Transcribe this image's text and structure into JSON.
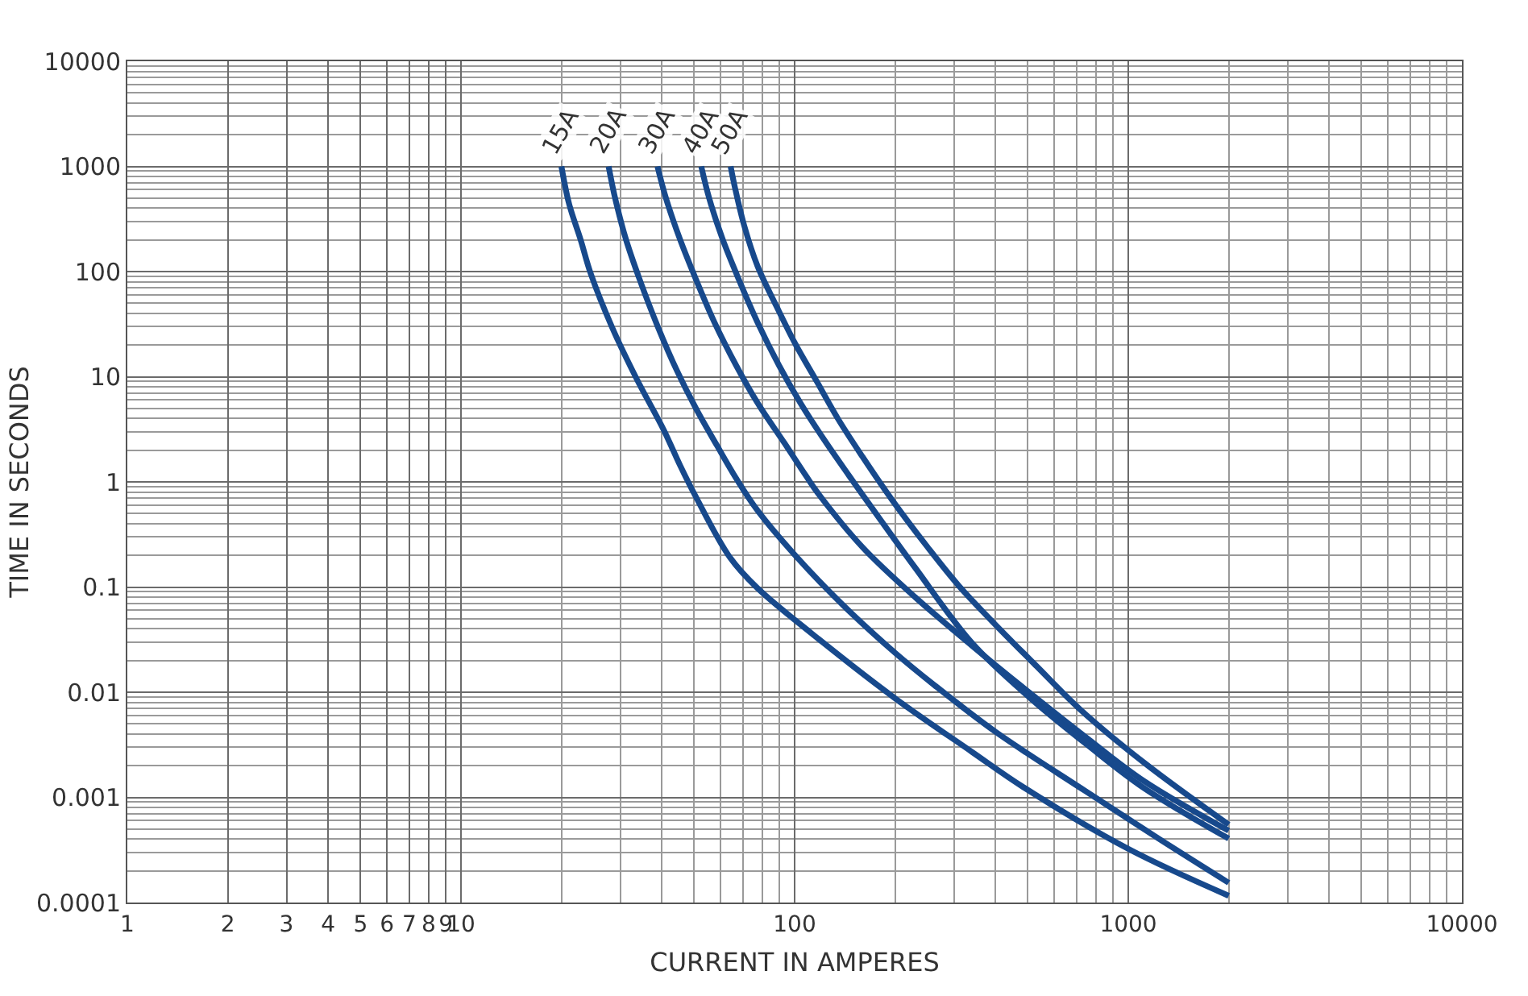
{
  "chart_data": {
    "type": "line",
    "xlabel": "CURRENT IN AMPERES",
    "ylabel": "TIME IN SECONDS",
    "log": "xy",
    "grid": true,
    "legend": false,
    "marker": "none",
    "line_style": "solid",
    "xlim": [
      1,
      10000
    ],
    "xticks": [
      1,
      2,
      3,
      4,
      5,
      6,
      7,
      8,
      9,
      10,
      100,
      1000,
      10000
    ],
    "ylim": [
      0.0001,
      10000
    ],
    "yticks": [
      0.0001,
      0.001,
      0.01,
      0.1,
      1,
      10,
      100,
      1000,
      10000
    ],
    "series": [
      {
        "name": "15A",
        "color": "#17498c",
        "x": [
          20,
          21.1,
          22.8,
          24.5,
          28.4,
          33.6,
          40.5,
          45.3,
          50.6,
          64.1,
          77.4,
          112,
          200,
          341,
          485,
          1000,
          2000
        ],
        "values": [
          1000,
          437,
          204,
          95,
          29.3,
          9.57,
          3.13,
          1.45,
          0.72,
          0.19,
          0.0975,
          0.0366,
          0.00875,
          0.00269,
          0.00125,
          0.000324,
          0.000116
        ]
      },
      {
        "name": "20A",
        "color": "#17498c",
        "x": [
          27.7,
          29,
          31.2,
          34.3,
          39,
          44.4,
          50.6,
          58.6,
          66.8,
          77.4,
          100,
          140,
          200,
          263,
          400,
          743,
          1250,
          2000
        ],
        "values": [
          1000,
          493,
          204,
          84.4,
          29.3,
          11.4,
          5,
          2.2,
          1.08,
          0.535,
          0.203,
          0.0668,
          0.0237,
          0.0116,
          0.0042,
          0.00115,
          0.000394,
          0.000154
        ]
      },
      {
        "name": "30A",
        "color": "#17498c",
        "x": [
          38.8,
          41.2,
          45.3,
          50.6,
          57.5,
          66.8,
          77.4,
          93.3,
          108,
          118.6,
          160,
          230,
          341,
          513,
          757,
          1117,
          2000
        ],
        "values": [
          1000,
          493,
          204,
          84.4,
          32.9,
          12.8,
          5.64,
          2.33,
          1.15,
          0.75,
          0.238,
          0.0798,
          0.0275,
          0.00955,
          0.0036,
          0.00142,
          0.000482
        ]
      },
      {
        "name": "40A",
        "color": "#17498c",
        "x": [
          52.5,
          55.5,
          60.8,
          68,
          77.4,
          89.8,
          104,
          123,
          145.5,
          159.6,
          230,
          341,
          513,
          757,
          1117,
          2000
        ],
        "values": [
          1000,
          493,
          204,
          84.4,
          32.9,
          12.8,
          5.64,
          2.48,
          1.15,
          0.76,
          0.152,
          0.0291,
          0.00857,
          0.00312,
          0.00122,
          0.000405
        ]
      },
      {
        "name": "50A",
        "color": "#17498c",
        "x": [
          64.3,
          66.3,
          70.6,
          77.4,
          88.2,
          100.4,
          116.5,
          135,
          159.6,
          195.5,
          250,
          310,
          396,
          531,
          716,
          1117,
          2000
        ],
        "values": [
          1000,
          622,
          274,
          113,
          46.9,
          20.6,
          9.02,
          3.96,
          1.74,
          0.68,
          0.241,
          0.1035,
          0.0453,
          0.0177,
          0.0069,
          0.00213,
          0.00055
        ]
      }
    ]
  }
}
